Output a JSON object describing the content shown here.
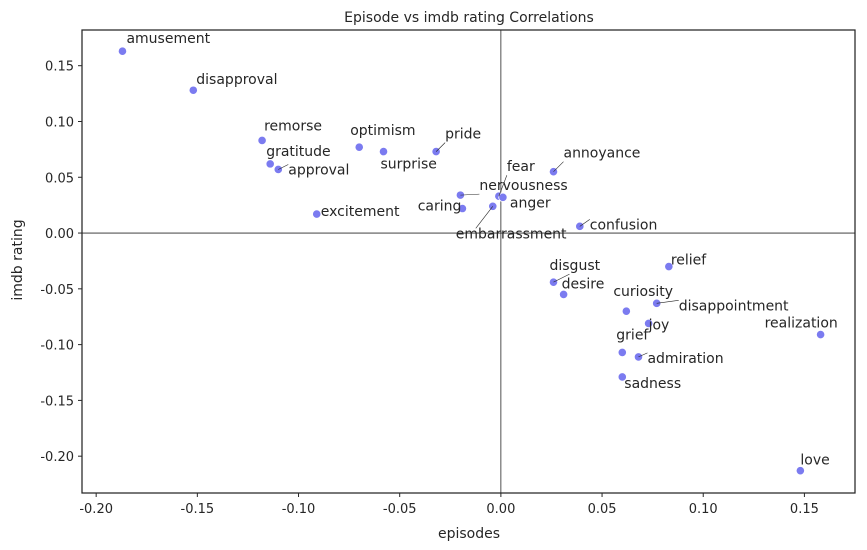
{
  "chart_data": {
    "type": "scatter",
    "title": "Episode vs imdb rating Correlations",
    "xlabel": "episodes",
    "ylabel": "imdb rating",
    "xlim": [
      -0.207,
      0.175
    ],
    "ylim": [
      -0.233,
      0.182
    ],
    "xticks": [
      "-0.20",
      "-0.15",
      "-0.10",
      "-0.05",
      "0.00",
      "0.05",
      "0.10",
      "0.15"
    ],
    "yticks": [
      "0.15",
      "0.10",
      "0.05",
      "0.00",
      "-0.05",
      "-0.10",
      "-0.15",
      "-0.20"
    ],
    "grid": false,
    "reference_lines": {
      "x": 0,
      "y": 0
    },
    "marker_color": "#7b7bf0",
    "points": [
      {
        "label": "amusement",
        "x": -0.187,
        "y": 0.163
      },
      {
        "label": "disapproval",
        "x": -0.152,
        "y": 0.128
      },
      {
        "label": "remorse",
        "x": -0.118,
        "y": 0.083
      },
      {
        "label": "gratitude",
        "x": -0.114,
        "y": 0.062
      },
      {
        "label": "approval",
        "x": -0.11,
        "y": 0.057
      },
      {
        "label": "excitement",
        "x": -0.091,
        "y": 0.017
      },
      {
        "label": "optimism",
        "x": -0.07,
        "y": 0.077
      },
      {
        "label": "surprise",
        "x": -0.058,
        "y": 0.073
      },
      {
        "label": "pride",
        "x": -0.032,
        "y": 0.073
      },
      {
        "label": "nervousness",
        "x": -0.02,
        "y": 0.034
      },
      {
        "label": "caring",
        "x": -0.019,
        "y": 0.022
      },
      {
        "label": "fear",
        "x": -0.001,
        "y": 0.033
      },
      {
        "label": "anger",
        "x": 0.001,
        "y": 0.032
      },
      {
        "label": "embarrassment",
        "x": -0.004,
        "y": 0.024
      },
      {
        "label": "annoyance",
        "x": 0.026,
        "y": 0.055
      },
      {
        "label": "confusion",
        "x": 0.039,
        "y": 0.006
      },
      {
        "label": "disgust",
        "x": 0.026,
        "y": -0.044
      },
      {
        "label": "desire",
        "x": 0.031,
        "y": -0.055
      },
      {
        "label": "relief",
        "x": 0.083,
        "y": -0.03
      },
      {
        "label": "curiosity",
        "x": 0.062,
        "y": -0.07
      },
      {
        "label": "disappointment",
        "x": 0.077,
        "y": -0.063
      },
      {
        "label": "joy",
        "x": 0.073,
        "y": -0.081
      },
      {
        "label": "grief",
        "x": 0.06,
        "y": -0.107
      },
      {
        "label": "admiration",
        "x": 0.068,
        "y": -0.111
      },
      {
        "label": "sadness",
        "x": 0.06,
        "y": -0.129
      },
      {
        "label": "realization",
        "x": 0.158,
        "y": -0.091
      },
      {
        "label": "love",
        "x": 0.148,
        "y": -0.213
      }
    ]
  }
}
